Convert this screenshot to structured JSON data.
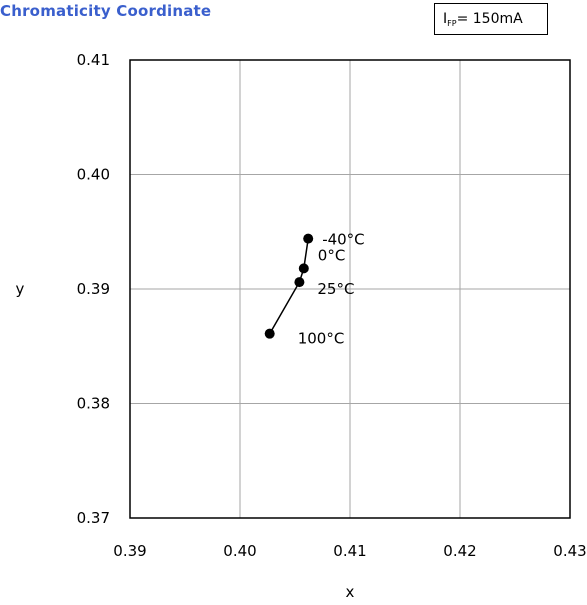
{
  "title": "Chromaticity Coordinate",
  "condition": {
    "symbol": "I",
    "subscript": "FP",
    "value": "= 150mA"
  },
  "chart_data": {
    "type": "scatter",
    "title": "Chromaticity Coordinate",
    "xlabel": "x",
    "ylabel": "y",
    "xlim": [
      0.39,
      0.43
    ],
    "ylim": [
      0.37,
      0.41
    ],
    "xticks": [
      "0.39",
      "0.40",
      "0.41",
      "0.42",
      "0.43"
    ],
    "yticks": [
      "0.37",
      "0.38",
      "0.39",
      "0.40",
      "0.41"
    ],
    "grid": true,
    "series": [
      {
        "points": [
          {
            "x": 0.4062,
            "y": 0.3944,
            "label": "-40°C"
          },
          {
            "x": 0.4058,
            "y": 0.3918,
            "label": "0°C"
          },
          {
            "x": 0.4054,
            "y": 0.3906,
            "label": "25°C"
          },
          {
            "x": 0.4027,
            "y": 0.3861,
            "label": "100°C"
          }
        ]
      }
    ]
  }
}
